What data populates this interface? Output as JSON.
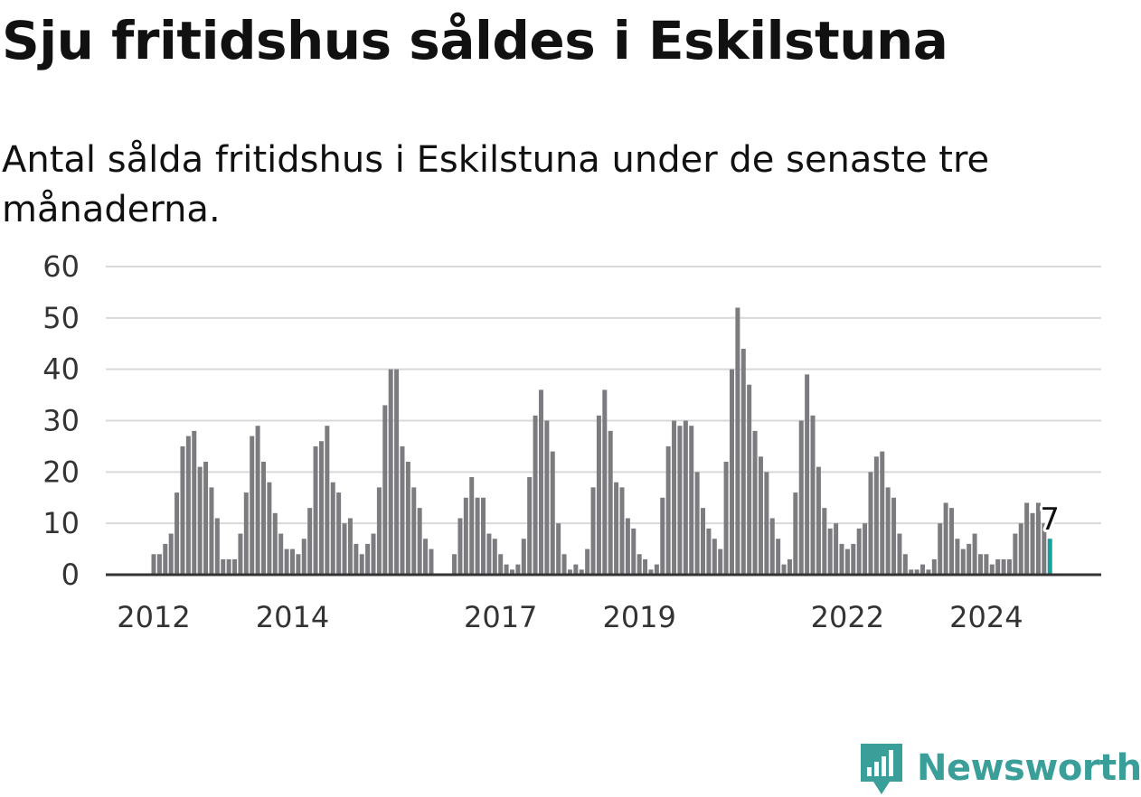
{
  "header": {
    "title": "Sju fritidshus såldes i Eskilstuna",
    "subtitle": "Antal sålda fritidshus i Eskilstuna under de senaste tre månaderna."
  },
  "chart_data": {
    "type": "bar",
    "title": "Sju fritidshus såldes i Eskilstuna",
    "subtitle": "Antal sålda fritidshus i Eskilstuna under de senaste tre månaderna.",
    "xlabel": "",
    "ylabel": "",
    "ylim": [
      0,
      60
    ],
    "yticks": [
      "0",
      "10",
      "20",
      "30",
      "40",
      "50",
      "60"
    ],
    "xtick_labels": [
      {
        "label": "2012",
        "index": 0
      },
      {
        "label": "2014",
        "index": 24
      },
      {
        "label": "2017",
        "index": 60
      },
      {
        "label": "2019",
        "index": 84
      },
      {
        "label": "2022",
        "index": 120
      },
      {
        "label": "2024",
        "index": 144
      }
    ],
    "grid": true,
    "bar_color": "#7c7c80",
    "highlight_color": "#18a19b",
    "highlight_label": "7",
    "start_period": "2011-11",
    "values": [
      4,
      4,
      6,
      8,
      16,
      25,
      27,
      28,
      21,
      22,
      17,
      11,
      3,
      3,
      3,
      8,
      16,
      27,
      29,
      22,
      18,
      12,
      8,
      5,
      5,
      4,
      7,
      13,
      25,
      26,
      29,
      18,
      16,
      10,
      11,
      6,
      4,
      6,
      8,
      17,
      33,
      40,
      40,
      25,
      22,
      17,
      13,
      7,
      5,
      0,
      0,
      0,
      4,
      11,
      15,
      19,
      15,
      15,
      8,
      7,
      4,
      2,
      1,
      2,
      7,
      19,
      31,
      36,
      30,
      24,
      10,
      4,
      1,
      2,
      1,
      5,
      17,
      31,
      36,
      28,
      18,
      17,
      11,
      9,
      4,
      3,
      1,
      2,
      15,
      25,
      30,
      29,
      30,
      29,
      20,
      13,
      9,
      7,
      5,
      22,
      40,
      52,
      44,
      37,
      28,
      23,
      20,
      11,
      7,
      2,
      3,
      16,
      30,
      39,
      31,
      21,
      13,
      9,
      10,
      6,
      5,
      6,
      9,
      10,
      20,
      23,
      24,
      17,
      15,
      8,
      4,
      1,
      1,
      2,
      1,
      3,
      10,
      14,
      13,
      7,
      5,
      6,
      8,
      4,
      4,
      2,
      3,
      3,
      3,
      8,
      10,
      14,
      12,
      14,
      10,
      7
    ]
  },
  "logo": {
    "name": "Newsworthy",
    "icon": "newsworthy-logo-icon",
    "color": "#3a9e99"
  }
}
